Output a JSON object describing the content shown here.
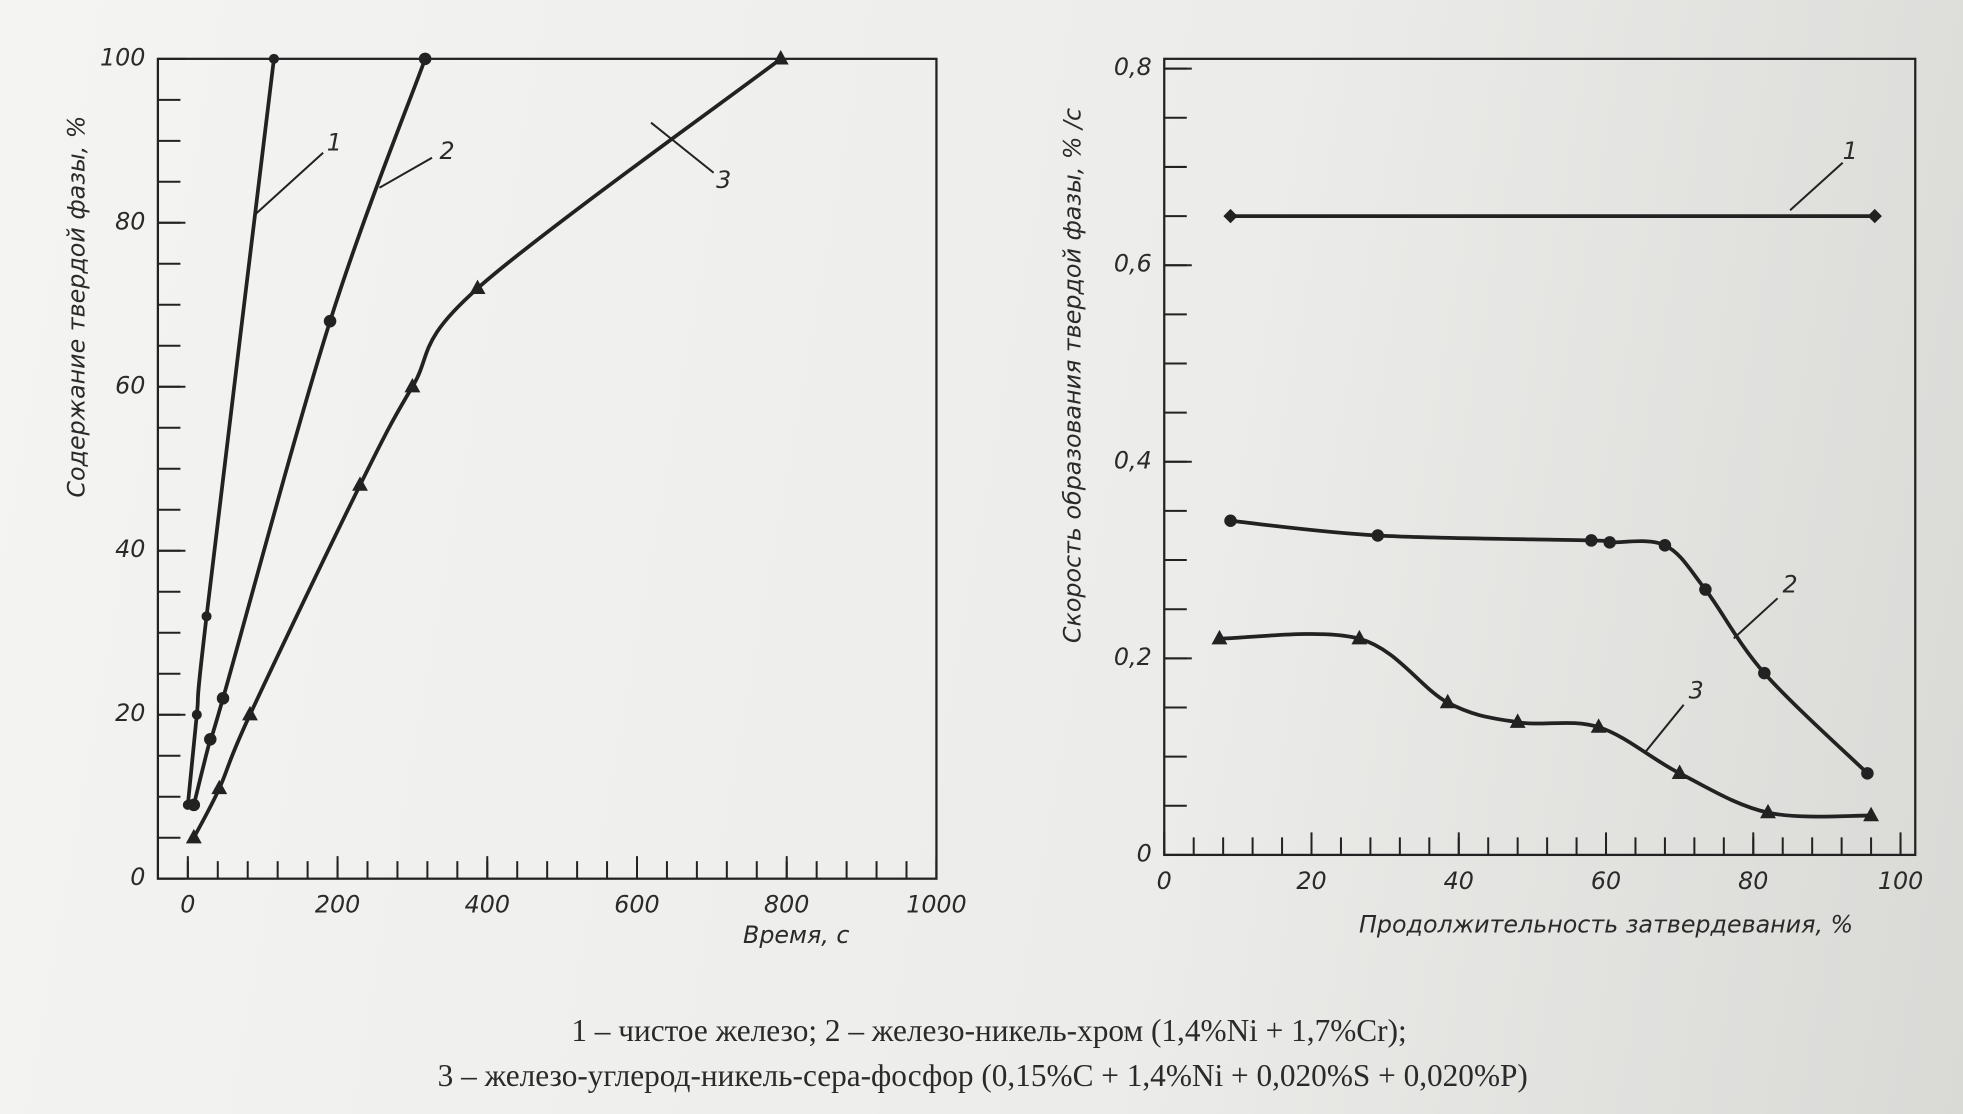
{
  "chart_data": [
    {
      "type": "line",
      "x_label": "Время, с",
      "y_label": "Содержание твердой фазы, %",
      "xlim": [
        -40,
        1000
      ],
      "ylim": [
        0,
        100
      ],
      "xticks": [
        0,
        200,
        400,
        600,
        800,
        1000
      ],
      "yticks": [
        0,
        20,
        40,
        60,
        80,
        100
      ],
      "minor_xticks": [
        0,
        40,
        80,
        120,
        160,
        200,
        240,
        280,
        320,
        360,
        400,
        440,
        480,
        520,
        560,
        600,
        640,
        680,
        720,
        760,
        800,
        840,
        880,
        920,
        960,
        1000
      ],
      "minor_yticks": [
        5,
        10,
        15,
        20,
        25,
        30,
        35,
        40,
        45,
        50,
        55,
        60,
        65,
        70,
        75,
        80,
        85,
        90,
        95
      ],
      "series": [
        {
          "name": "1",
          "color": "#222",
          "marker": "dot",
          "x": [
            0,
            12,
            25,
            115
          ],
          "values": [
            9,
            20,
            32,
            100
          ]
        },
        {
          "name": "2",
          "color": "#222",
          "marker": "circle",
          "x": [
            8,
            30,
            47,
            190,
            317
          ],
          "values": [
            9,
            17,
            22,
            68,
            100
          ]
        },
        {
          "name": "3",
          "color": "#222",
          "marker": "triangle",
          "x": [
            8,
            42,
            83,
            230,
            300,
            387,
            792
          ],
          "values": [
            5,
            11,
            20,
            48,
            60,
            72,
            100
          ]
        }
      ]
    },
    {
      "type": "line",
      "x_label": "Продолжительность затвердевания, %",
      "y_label": "Скорость образования твердой фазы, % /с",
      "xlim": [
        0,
        102
      ],
      "ylim": [
        0,
        0.81
      ],
      "xticks": [
        0,
        20,
        40,
        60,
        80,
        100
      ],
      "yticks": [
        0,
        {
          "value": 0.2,
          "label": "0,2"
        },
        {
          "value": 0.4,
          "label": "0,4"
        },
        {
          "value": 0.6,
          "label": "0,6"
        },
        {
          "value": 0.8,
          "label": "0,8"
        }
      ],
      "minor_xticks": [
        4,
        8,
        12,
        16,
        20,
        24,
        28,
        32,
        36,
        40,
        44,
        48,
        52,
        56,
        60,
        64,
        68,
        72,
        76,
        80,
        84,
        88,
        92,
        96,
        100
      ],
      "minor_yticks": [
        0.05,
        0.1,
        0.15,
        0.2,
        0.25,
        0.3,
        0.35,
        0.4,
        0.45,
        0.5,
        0.55,
        0.6,
        0.65,
        0.7,
        0.75,
        0.8
      ],
      "series": [
        {
          "name": "1",
          "color": "#222",
          "marker": "diamond",
          "x": [
            9,
            96.5
          ],
          "values": [
            0.65,
            0.65
          ]
        },
        {
          "name": "2",
          "color": "#222",
          "marker": "circle",
          "x": [
            9,
            29,
            58,
            60.5,
            68,
            73.5,
            81.5,
            95.5
          ],
          "values": [
            0.34,
            0.325,
            0.32,
            0.318,
            0.315,
            0.27,
            0.185,
            0.083
          ]
        },
        {
          "name": "3",
          "color": "#222",
          "marker": "triangle",
          "x": [
            7.5,
            26.5,
            38.5,
            48,
            59,
            70,
            82,
            96
          ],
          "values": [
            0.22,
            0.22,
            0.155,
            0.135,
            0.13,
            0.083,
            0.043,
            0.04
          ]
        }
      ]
    }
  ],
  "caption": [
    "1 – чистое железо; 2 – железо-никель-хром (1,4%Ni + 1,7%Cr);",
    "3 – железо-углерод-никель-сера-фосфор (0,15%C + 1,4%Ni + 0,020%S + 0,020%P)"
  ]
}
